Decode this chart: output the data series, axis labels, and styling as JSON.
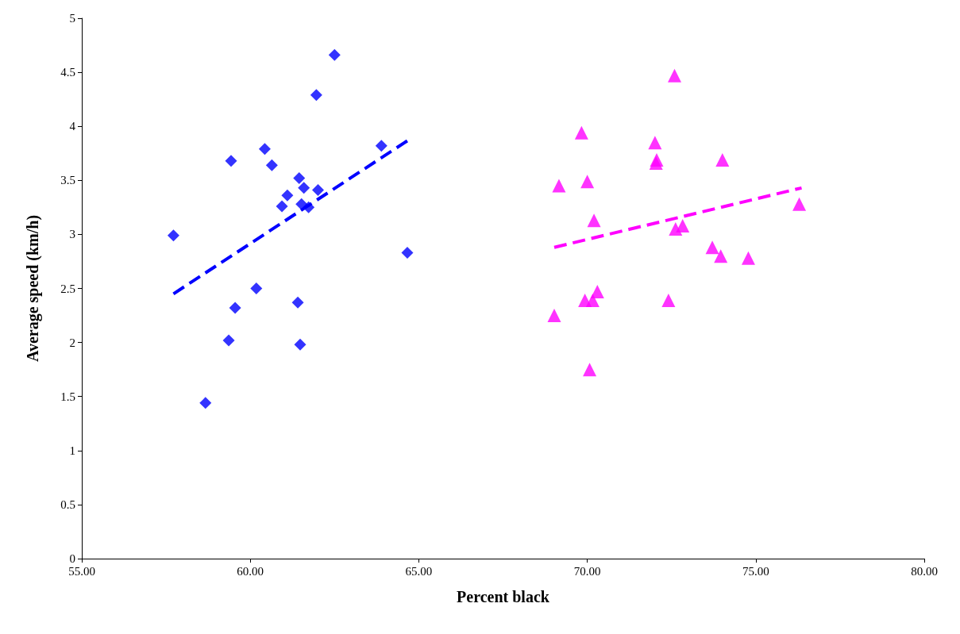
{
  "chart_data": {
    "type": "scatter",
    "xlabel": "Percent black",
    "ylabel": "Average speed (km/h)",
    "xlim": [
      55,
      80
    ],
    "xticks": [
      {
        "value": 55,
        "label": "55.00"
      },
      {
        "value": 60,
        "label": "60.00"
      },
      {
        "value": 65,
        "label": "65.00"
      },
      {
        "value": 70,
        "label": "70.00"
      },
      {
        "value": 75,
        "label": "75.00"
      },
      {
        "value": 80,
        "label": "80.00"
      }
    ],
    "ylim": [
      0,
      5
    ],
    "yticks": [
      0,
      0.5,
      1,
      1.5,
      2,
      2.5,
      3,
      3.5,
      4,
      4.5,
      5
    ],
    "grid": false,
    "legend": false,
    "series": [
      {
        "color": "#0000ff",
        "marker": "diamond",
        "x": [
          57.72,
          58.67,
          59.36,
          59.43,
          59.55,
          60.18,
          60.43,
          60.64,
          60.94,
          61.1,
          61.45,
          61.41,
          61.48,
          61.52,
          61.59,
          61.73,
          61.96,
          62.01,
          62.5,
          63.89,
          64.66
        ],
        "values": [
          2.99,
          1.44,
          2.02,
          3.68,
          2.32,
          2.5,
          3.79,
          3.64,
          3.26,
          3.36,
          3.52,
          2.37,
          1.98,
          3.28,
          3.43,
          3.25,
          4.29,
          3.41,
          4.66,
          3.82,
          2.83
        ]
      },
      {
        "color": "#ff00ff",
        "marker": "triangle",
        "x": [
          69.02,
          69.16,
          69.83,
          69.93,
          70.0,
          70.07,
          70.16,
          70.2,
          70.3,
          72.01,
          72.04,
          72.06,
          72.41,
          72.59,
          72.62,
          72.83,
          73.71,
          73.96,
          74.01,
          74.78,
          76.29
        ],
        "values": [
          2.25,
          3.45,
          3.94,
          2.39,
          3.49,
          1.75,
          2.39,
          3.13,
          2.47,
          3.85,
          3.66,
          3.69,
          2.39,
          4.47,
          3.05,
          3.08,
          2.88,
          2.8,
          3.69,
          2.78,
          3.28
        ]
      },
      {
        "type": "line",
        "color": "#0000ff",
        "marker": "none",
        "line_style": "dashed",
        "x": [
          57.72,
          64.68
        ],
        "values": [
          2.45,
          3.87
        ]
      },
      {
        "type": "line",
        "color": "#ff00ff",
        "marker": "none",
        "line_style": "dashed",
        "x": [
          69.02,
          76.36
        ],
        "values": [
          2.88,
          3.43
        ]
      }
    ]
  }
}
